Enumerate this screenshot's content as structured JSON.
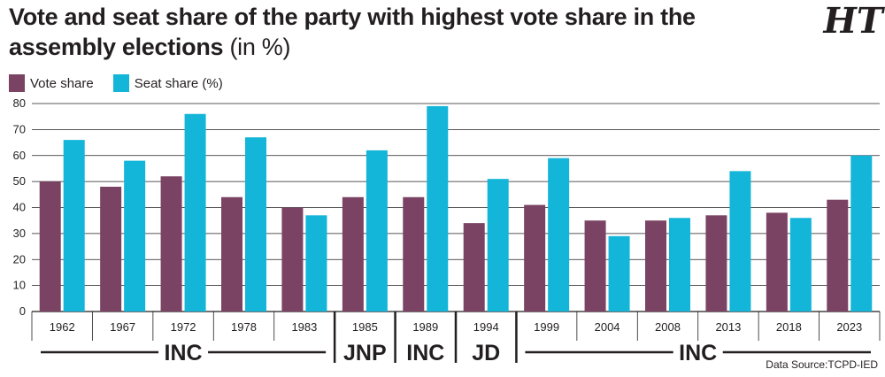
{
  "title": {
    "main": "Vote and seat share of the party with highest vote share in the assembly elections",
    "unit": "(in %)"
  },
  "logo_text": "HT",
  "legend": [
    {
      "label": "Vote share",
      "color": "#7b4363"
    },
    {
      "label": "Seat share (%)",
      "color": "#13b5d8"
    }
  ],
  "source": "Data Source:TCPD-IED",
  "chart_data": {
    "type": "bar",
    "categories": [
      "1962",
      "1967",
      "1972",
      "1978",
      "1983",
      "1985",
      "1989",
      "1994",
      "1999",
      "2004",
      "2008",
      "2013",
      "2018",
      "2023"
    ],
    "series": [
      {
        "name": "Vote share",
        "color": "#7b4363",
        "values": [
          50,
          48,
          52,
          44,
          40,
          44,
          44,
          34,
          41,
          35,
          35,
          37,
          38,
          43
        ]
      },
      {
        "name": "Seat share (%)",
        "color": "#13b5d8",
        "values": [
          66,
          58,
          76,
          67,
          37,
          62,
          79,
          51,
          59,
          29,
          36,
          54,
          36,
          60
        ]
      }
    ],
    "ylim": [
      0,
      80
    ],
    "yticks": [
      0,
      10,
      20,
      30,
      40,
      50,
      60,
      70,
      80
    ],
    "grid": true,
    "party_groups": [
      {
        "label": "INC",
        "from": 0,
        "to": 4
      },
      {
        "label": "JNP",
        "from": 5,
        "to": 5
      },
      {
        "label": "INC",
        "from": 6,
        "to": 6
      },
      {
        "label": "JD",
        "from": 7,
        "to": 7
      },
      {
        "label": "INC",
        "from": 8,
        "to": 13
      }
    ]
  }
}
